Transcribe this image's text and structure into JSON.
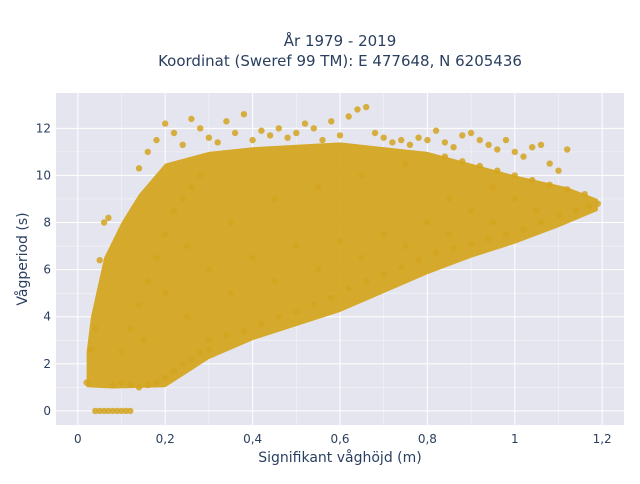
{
  "chart_data": {
    "type": "scatter",
    "title": [
      "År 1979 - 2019",
      "Koordinat (Sweref 99 TM): E 477648, N 6205436"
    ],
    "xlabel": "Signifikant våghöjd (m)",
    "ylabel": "Vågperiod (s)",
    "xlim": [
      -0.05,
      1.25
    ],
    "ylim": [
      -0.6,
      13.5
    ],
    "xticks": [
      0,
      0.2,
      0.4,
      0.6,
      0.8,
      1,
      1.2
    ],
    "xtick_labels": [
      "0",
      "0,2",
      "0,4",
      "0,6",
      "0,8",
      "1",
      "1,2"
    ],
    "yticks": [
      0,
      2,
      4,
      6,
      8,
      10,
      12
    ],
    "ytick_labels": [
      "0",
      "2",
      "4",
      "6",
      "8",
      "10",
      "12"
    ],
    "grid": true,
    "legend": "none",
    "marker_color": "#D4A520",
    "plot_bg": "#E5E5EF",
    "points": [
      [
        0.02,
        1.2
      ],
      [
        0.03,
        2.6
      ],
      [
        0.04,
        3.5
      ],
      [
        0.05,
        6.4
      ],
      [
        0.06,
        8.0
      ],
      [
        0.07,
        8.2
      ],
      [
        0.04,
        0.0
      ],
      [
        0.05,
        0.0
      ],
      [
        0.06,
        0.0
      ],
      [
        0.07,
        0.0
      ],
      [
        0.08,
        0.0
      ],
      [
        0.09,
        0.0
      ],
      [
        0.1,
        0.0
      ],
      [
        0.11,
        0.0
      ],
      [
        0.12,
        0.0
      ],
      [
        0.08,
        1.1
      ],
      [
        0.1,
        1.2
      ],
      [
        0.12,
        1.1
      ],
      [
        0.14,
        1.0
      ],
      [
        0.16,
        1.1
      ],
      [
        0.18,
        1.2
      ],
      [
        0.2,
        1.4
      ],
      [
        0.22,
        1.7
      ],
      [
        0.24,
        2.0
      ],
      [
        0.26,
        2.2
      ],
      [
        0.28,
        2.5
      ],
      [
        0.3,
        2.6
      ],
      [
        0.1,
        2.5
      ],
      [
        0.12,
        3.5
      ],
      [
        0.14,
        4.5
      ],
      [
        0.16,
        5.5
      ],
      [
        0.18,
        6.5
      ],
      [
        0.2,
        7.5
      ],
      [
        0.22,
        8.5
      ],
      [
        0.24,
        9.0
      ],
      [
        0.26,
        9.5
      ],
      [
        0.28,
        10.0
      ],
      [
        0.14,
        10.3
      ],
      [
        0.16,
        11.0
      ],
      [
        0.18,
        11.5
      ],
      [
        0.2,
        12.2
      ],
      [
        0.22,
        11.8
      ],
      [
        0.24,
        11.3
      ],
      [
        0.26,
        12.4
      ],
      [
        0.28,
        12.0
      ],
      [
        0.3,
        11.6
      ],
      [
        0.32,
        11.4
      ],
      [
        0.34,
        12.3
      ],
      [
        0.36,
        11.8
      ],
      [
        0.38,
        12.6
      ],
      [
        0.4,
        11.5
      ],
      [
        0.42,
        11.9
      ],
      [
        0.44,
        11.7
      ],
      [
        0.46,
        12.0
      ],
      [
        0.48,
        11.6
      ],
      [
        0.5,
        11.8
      ],
      [
        0.52,
        12.2
      ],
      [
        0.54,
        12.0
      ],
      [
        0.56,
        11.5
      ],
      [
        0.58,
        12.3
      ],
      [
        0.6,
        11.7
      ],
      [
        0.62,
        12.5
      ],
      [
        0.64,
        12.8
      ],
      [
        0.66,
        12.9
      ],
      [
        0.68,
        11.8
      ],
      [
        0.7,
        11.6
      ],
      [
        0.72,
        11.4
      ],
      [
        0.74,
        11.5
      ],
      [
        0.76,
        11.3
      ],
      [
        0.78,
        11.6
      ],
      [
        0.8,
        11.5
      ],
      [
        0.82,
        11.9
      ],
      [
        0.84,
        11.4
      ],
      [
        0.86,
        11.2
      ],
      [
        0.88,
        11.7
      ],
      [
        0.9,
        11.8
      ],
      [
        0.92,
        11.5
      ],
      [
        0.94,
        11.3
      ],
      [
        0.96,
        11.1
      ],
      [
        0.98,
        11.5
      ],
      [
        1.0,
        11.0
      ],
      [
        1.02,
        10.8
      ],
      [
        1.04,
        11.2
      ],
      [
        1.06,
        11.3
      ],
      [
        1.08,
        10.5
      ],
      [
        1.1,
        10.2
      ],
      [
        1.12,
        11.1
      ],
      [
        0.3,
        3.0
      ],
      [
        0.34,
        3.2
      ],
      [
        0.38,
        3.4
      ],
      [
        0.42,
        3.7
      ],
      [
        0.46,
        4.0
      ],
      [
        0.5,
        4.2
      ],
      [
        0.54,
        4.5
      ],
      [
        0.58,
        4.8
      ],
      [
        0.62,
        5.2
      ],
      [
        0.66,
        5.5
      ],
      [
        0.7,
        5.8
      ],
      [
        0.74,
        6.1
      ],
      [
        0.78,
        6.4
      ],
      [
        0.82,
        6.7
      ],
      [
        0.86,
        6.9
      ],
      [
        0.9,
        7.1
      ],
      [
        0.94,
        7.3
      ],
      [
        0.98,
        7.5
      ],
      [
        1.02,
        7.7
      ],
      [
        1.06,
        8.0
      ],
      [
        1.1,
        8.3
      ],
      [
        1.14,
        8.5
      ],
      [
        1.17,
        8.7
      ],
      [
        1.19,
        8.8
      ],
      [
        1.16,
        9.2
      ],
      [
        1.12,
        9.4
      ],
      [
        1.08,
        9.6
      ],
      [
        1.04,
        9.8
      ],
      [
        1.0,
        10.0
      ],
      [
        0.96,
        10.2
      ],
      [
        0.92,
        10.4
      ],
      [
        0.88,
        10.6
      ],
      [
        0.84,
        10.8
      ],
      [
        0.2,
        5.0
      ],
      [
        0.3,
        6.0
      ],
      [
        0.4,
        6.5
      ],
      [
        0.5,
        7.0
      ],
      [
        0.6,
        7.2
      ],
      [
        0.7,
        7.5
      ],
      [
        0.8,
        8.0
      ],
      [
        0.9,
        8.5
      ],
      [
        1.0,
        9.0
      ],
      [
        0.25,
        4.0
      ],
      [
        0.35,
        5.0
      ],
      [
        0.45,
        5.5
      ],
      [
        0.55,
        6.0
      ],
      [
        0.65,
        6.5
      ],
      [
        0.75,
        7.0
      ],
      [
        0.85,
        7.5
      ],
      [
        0.95,
        8.0
      ],
      [
        1.05,
        8.5
      ],
      [
        0.15,
        3.0
      ],
      [
        0.25,
        7.0
      ],
      [
        0.35,
        8.0
      ],
      [
        0.45,
        9.0
      ],
      [
        0.55,
        9.5
      ],
      [
        0.65,
        10.0
      ],
      [
        0.75,
        10.5
      ],
      [
        0.85,
        9.0
      ],
      [
        0.95,
        9.5
      ]
    ]
  }
}
